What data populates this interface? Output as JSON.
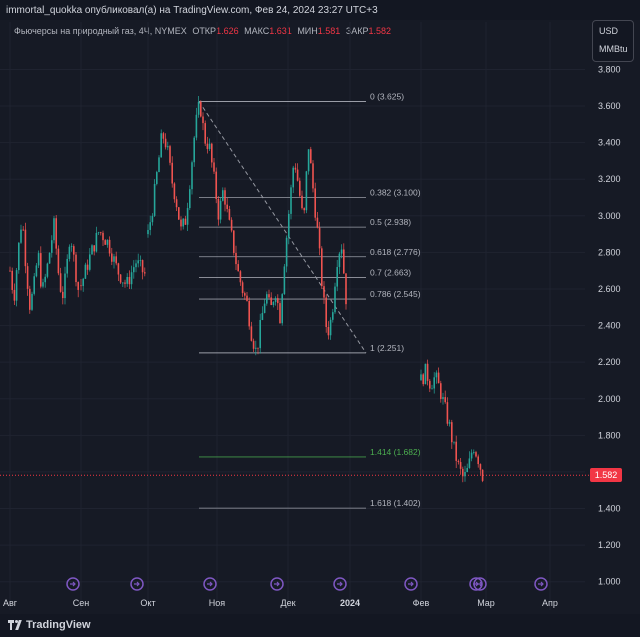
{
  "header": {
    "publisher": "immortal_quokka опубликовал(а) на TradingView.com, Фев 24, 2024 23:27 UTC+3",
    "symbol": "Фьючерсы на природный газ, 4Ч, NYMEX",
    "ohlc": [
      {
        "label": "ОТКР",
        "value": "1.626"
      },
      {
        "label": "МАКС",
        "value": "1.631"
      },
      {
        "label": "МИН",
        "value": "1.581"
      },
      {
        "label": "ЗАКР",
        "value": "1.582"
      }
    ]
  },
  "unit": {
    "currency": "USD",
    "measure": "MMBtu"
  },
  "footer": {
    "brand": "TradingView"
  },
  "colors": {
    "up": "#26a69a",
    "down": "#ef5350",
    "background": "#161a25",
    "last_price": "#f23645",
    "fib_target": "#4caf50"
  },
  "chart_data": {
    "type": "candlestick",
    "ylim": [
      0.9,
      3.95
    ],
    "y_ticks": [
      "3.800",
      "3.600",
      "3.400",
      "3.200",
      "3.000",
      "2.800",
      "2.600",
      "2.400",
      "2.200",
      "2.000",
      "1.800",
      "1.600",
      "1.400",
      "1.200",
      "1.000"
    ],
    "x_tick_labels": [
      "Авг",
      "Сен",
      "Окт",
      "Ноя",
      "Дек",
      "2024",
      "Фев",
      "Мар",
      "Апр"
    ],
    "last_price": {
      "value": 1.582,
      "label": "1.582"
    },
    "fib_levels": [
      {
        "ratio": "0",
        "price": 3.625,
        "label": "0 (3.625)"
      },
      {
        "ratio": "0.382",
        "price": 3.1,
        "label": "0.382 (3.100)"
      },
      {
        "ratio": "0.5",
        "price": 2.938,
        "label": "0.5 (2.938)"
      },
      {
        "ratio": "0.618",
        "price": 2.776,
        "label": "0.618 (2.776)"
      },
      {
        "ratio": "0.7",
        "price": 2.663,
        "label": "0.7 (2.663)"
      },
      {
        "ratio": "0.786",
        "price": 2.545,
        "label": "0.786 (2.545)"
      },
      {
        "ratio": "1",
        "price": 2.251,
        "label": "1 (2.251)"
      },
      {
        "ratio": "1.414",
        "price": 1.682,
        "label": "1.414 (1.682)",
        "highlight": true
      },
      {
        "ratio": "1.618",
        "price": 1.402,
        "label": "1.618 (1.402)"
      }
    ],
    "trend_line": {
      "from_price": 3.625,
      "to_price": 2.251
    },
    "segments": [
      {
        "from_date": "Авг",
        "to_date": "Сен",
        "prices": [
          2.7,
          2.55,
          2.8,
          3.0,
          2.72,
          2.5,
          2.62,
          2.8,
          2.58,
          2.68,
          2.82,
          2.95,
          2.7,
          2.55,
          2.68,
          2.92,
          2.75,
          2.6
        ]
      },
      {
        "from_date": "Сен",
        "to_date": "Окт",
        "prices": [
          2.62,
          2.78,
          2.92,
          2.85,
          2.7,
          2.62,
          2.75,
          2.68
        ]
      },
      {
        "from_date": "Окт",
        "to_date": "2024",
        "prices": [
          2.9,
          3.05,
          3.25,
          3.45,
          3.38,
          3.2,
          3.08,
          2.92,
          2.98,
          3.22,
          3.48,
          3.62,
          3.42,
          3.38,
          3.2,
          3.0,
          3.15,
          2.98,
          2.85,
          2.7,
          2.6,
          2.52,
          2.35,
          2.25,
          2.42,
          2.58,
          2.48,
          2.6,
          2.45,
          2.78,
          3.05,
          3.32,
          3.15,
          2.95,
          3.4,
          3.15,
          2.9,
          2.6,
          2.35,
          2.45,
          2.75,
          2.86,
          2.55
        ]
      },
      {
        "from_date": "Фев",
        "to_date": "Мар",
        "prices": [
          2.1,
          2.15,
          2.08,
          2.12,
          2.05,
          1.95,
          1.85,
          1.72,
          1.62,
          1.56,
          1.62,
          1.75,
          1.68,
          1.58
        ]
      }
    ]
  }
}
